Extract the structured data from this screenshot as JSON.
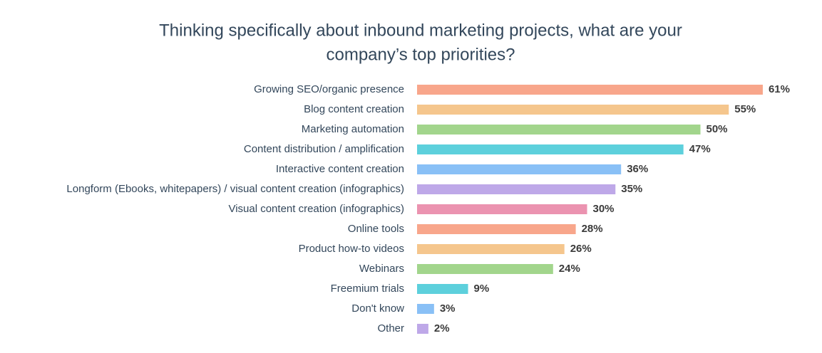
{
  "chart_data": {
    "type": "barh",
    "title": [
      "Thinking specifically about inbound marketing projects, what are your",
      "company’s top priorities?"
    ],
    "categories": [
      "Growing SEO/organic presence",
      "Blog content creation",
      "Marketing automation",
      "Content distribution / amplification",
      "Interactive content creation",
      "Longform (Ebooks, whitepapers) / visual content creation (infographics)",
      "Visual content creation (infographics)",
      "Online tools",
      "Product how-to videos",
      "Webinars",
      "Freemium trials",
      "Don't know",
      "Other"
    ],
    "values": [
      61,
      55,
      50,
      47,
      36,
      35,
      30,
      28,
      26,
      24,
      9,
      3,
      2
    ],
    "value_labels": [
      "61%",
      "55%",
      "50%",
      "47%",
      "36%",
      "35%",
      "30%",
      "28%",
      "26%",
      "24%",
      "9%",
      "3%",
      "2%"
    ],
    "colors": [
      "#f8a68b",
      "#f5c68d",
      "#a2d58c",
      "#5dd0dc",
      "#89c0f6",
      "#bea8e8",
      "#eb93b0",
      "#f8a68b",
      "#f5c68d",
      "#a2d58c",
      "#5dd0dc",
      "#89c0f6",
      "#bea8e8"
    ]
  }
}
